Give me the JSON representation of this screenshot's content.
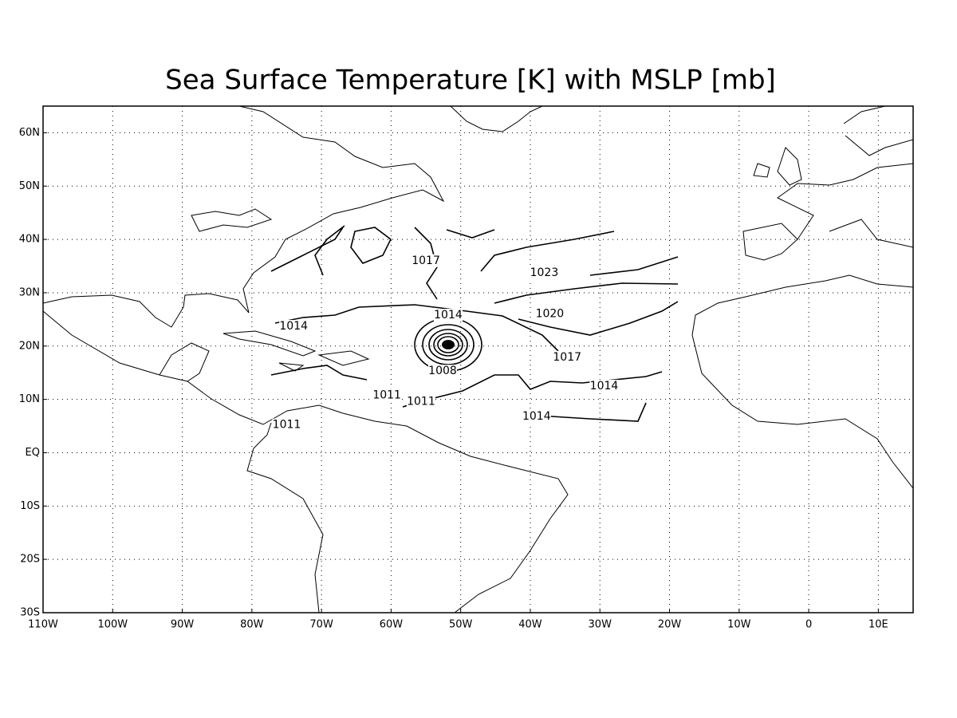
{
  "title": "Sea Surface Temperature [K] with MSLP [mb]",
  "map": {
    "lon_range": [
      -110,
      15
    ],
    "lat_range": [
      -30,
      65
    ],
    "grid": true,
    "lon_ticks": [
      {
        "value": -110,
        "label": "110W"
      },
      {
        "value": -100,
        "label": "100W"
      },
      {
        "value": -90,
        "label": "90W"
      },
      {
        "value": -80,
        "label": "80W"
      },
      {
        "value": -70,
        "label": "70W"
      },
      {
        "value": -60,
        "label": "60W"
      },
      {
        "value": -50,
        "label": "50W"
      },
      {
        "value": -40,
        "label": "40W"
      },
      {
        "value": -30,
        "label": "30W"
      },
      {
        "value": -20,
        "label": "20W"
      },
      {
        "value": -10,
        "label": "10W"
      },
      0,
      {
        "value": 10,
        "label": "10E"
      }
    ],
    "lat_ticks": [
      {
        "value": 60,
        "label": "60N"
      },
      {
        "value": 50,
        "label": "50N"
      },
      {
        "value": 40,
        "label": "40N"
      },
      {
        "value": 30,
        "label": "30N"
      },
      {
        "value": 20,
        "label": "20N"
      },
      {
        "value": 10,
        "label": "10N"
      },
      {
        "value": 0,
        "label": "EQ"
      },
      {
        "value": -10,
        "label": "10S"
      },
      {
        "value": -20,
        "label": "20S"
      },
      {
        "value": -30,
        "label": "30S"
      }
    ],
    "contour_labels": [
      {
        "value": 1017,
        "lon": -55,
        "lat": 36
      },
      {
        "value": 1023,
        "lon": -38,
        "lat": 33.7
      },
      {
        "value": 1014,
        "lon": -51.8,
        "lat": 25.8
      },
      {
        "value": 1020,
        "lon": -37.2,
        "lat": 26
      },
      {
        "value": 1014,
        "lon": -74,
        "lat": 23.7
      },
      {
        "value": 1008,
        "lon": -52.6,
        "lat": 15.3
      },
      {
        "value": 1017,
        "lon": -34.7,
        "lat": 17.9
      },
      {
        "value": 1014,
        "lon": -29.4,
        "lat": 12.5
      },
      {
        "value": 1011,
        "lon": -60.6,
        "lat": 10.8
      },
      {
        "value": 1011,
        "lon": -55.7,
        "lat": 9.6
      },
      {
        "value": 1014,
        "lon": -39.1,
        "lat": 6.8
      },
      {
        "value": 1011,
        "lon": -75,
        "lat": 5.2
      }
    ]
  }
}
